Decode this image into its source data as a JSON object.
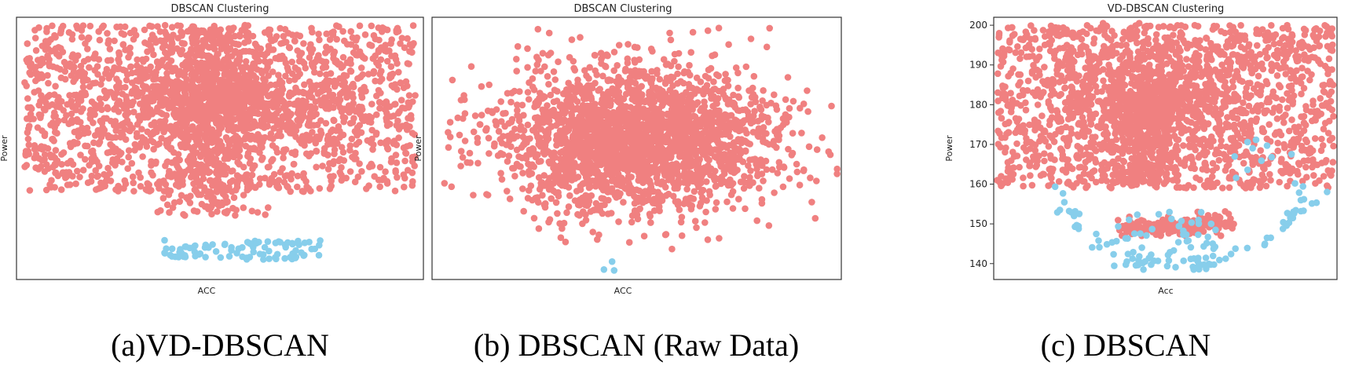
{
  "colors": {
    "cluster_main": "#F08080",
    "cluster_outlier": "#87CEEB",
    "frame": "#333333"
  },
  "captions": [
    "(a)VD-DBSCAN",
    "(b) DBSCAN (Raw Data)",
    "(c) DBSCAN"
  ],
  "chart_data": [
    {
      "type": "scatter",
      "title": "DBSCAN Clustering",
      "xlabel": "ACC",
      "ylabel": "Power",
      "xticks": [],
      "yticks": [],
      "xlim": [
        0,
        100
      ],
      "ylim": [
        136,
        202
      ],
      "series": [
        {
          "name": "",
          "color": "#F08080",
          "count": 2600,
          "description_pattern": "A"
        },
        {
          "name": "",
          "color": "#87CEEB",
          "count": 90,
          "description_pattern": "A_outlier"
        }
      ]
    },
    {
      "type": "scatter",
      "title": "DBSCAN Clustering",
      "xlabel": "ACC",
      "ylabel": "Power",
      "xticks": [],
      "yticks": [],
      "xlim": [
        0,
        100
      ],
      "ylim": [
        136,
        202
      ],
      "series": [
        {
          "name": "",
          "color": "#F08080",
          "count": 2400,
          "description_pattern": "B"
        },
        {
          "name": "",
          "color": "#87CEEB",
          "count": 3,
          "description_pattern": "B_outlier"
        }
      ]
    },
    {
      "type": "scatter",
      "title": "VD-DBSCAN Clustering",
      "xlabel": "Acc",
      "ylabel": "Power",
      "xticks": [],
      "yticks": [
        140,
        150,
        160,
        170,
        180,
        190,
        200
      ],
      "xlim": [
        0,
        100
      ],
      "ylim": [
        136,
        202
      ],
      "series": [
        {
          "name": "",
          "color": "#F08080",
          "count": 2600,
          "description_pattern": "C"
        },
        {
          "name": "",
          "color": "#87CEEB",
          "count": 140,
          "description_pattern": "C_outlier"
        }
      ]
    }
  ]
}
